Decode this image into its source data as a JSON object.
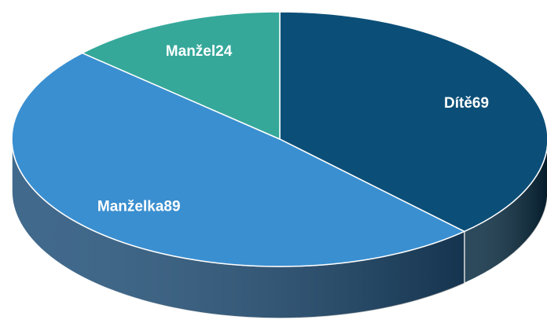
{
  "chart_data": {
    "type": "pie",
    "categories": [
      "Dítě",
      "Manželka",
      "Manžel"
    ],
    "values": [
      69,
      89,
      24
    ],
    "colors": [
      "#0b4f78",
      "#3a8fd0",
      "#35a89a"
    ],
    "side_colors": [
      "#062a40",
      "#1f4f78",
      "#1d6a60"
    ]
  }
}
